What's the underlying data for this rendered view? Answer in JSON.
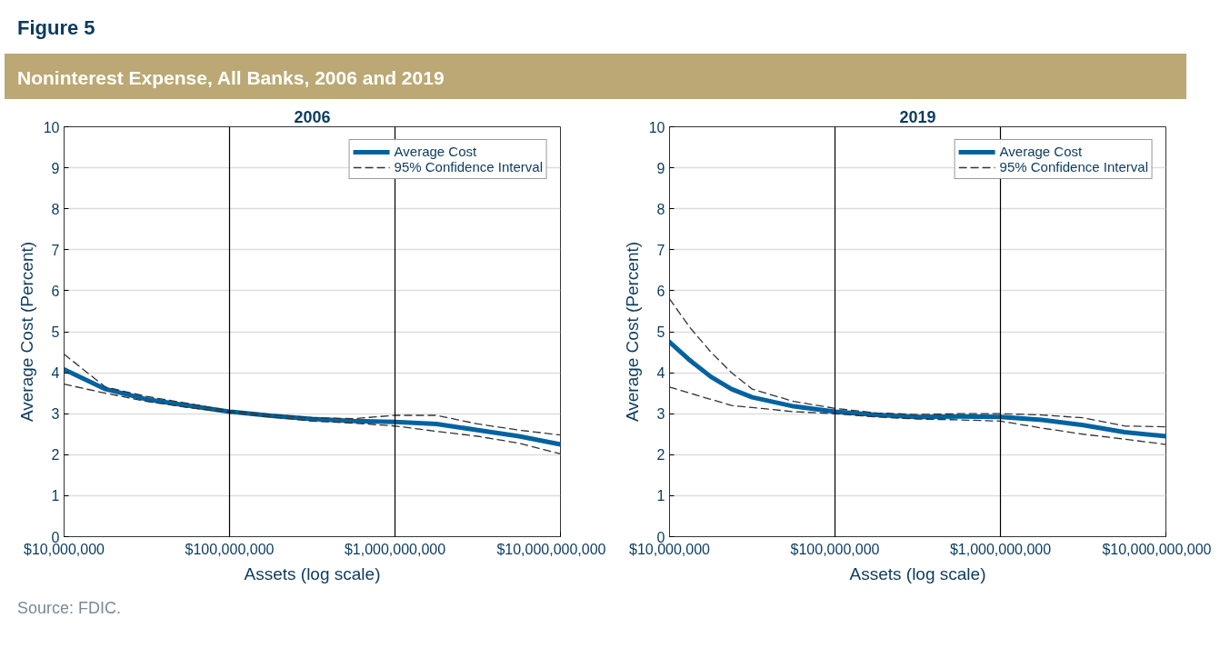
{
  "chart_data": [
    {
      "type": "line",
      "title": "2006",
      "xlabel": "Assets (log scale)",
      "ylabel": "Average Cost (Percent)",
      "log": "x",
      "grid": "y",
      "legend": "top right",
      "annotations": [
        "Figure 5",
        "Noninterest Expense, All Banks, 2006 and 2019"
      ],
      "x": [
        10000000,
        17800000,
        31600000,
        56200000,
        100000000,
        178000000,
        316000000,
        562000000,
        1000000000,
        1780000000,
        3160000000,
        5620000000,
        10000000000
      ],
      "xlim": [
        10000000,
        10000000000
      ],
      "xticks": [
        {
          "value": 10000000,
          "label": "$10,000,000"
        },
        {
          "value": 100000000,
          "label": "$100,000,000"
        },
        {
          "value": 1000000000,
          "label": "$1,000,000,000"
        },
        {
          "value": 10000000000,
          "label": "$10,000,000,000"
        }
      ],
      "ylim": [
        0,
        10
      ],
      "yticks": [
        0,
        1,
        2,
        3,
        4,
        5,
        6,
        7,
        8,
        9,
        10
      ],
      "ref_lines": [
        {
          "axis": "x",
          "value": 100000000,
          "label": null,
          "color": "#000000"
        },
        {
          "axis": "x",
          "value": 1000000000,
          "label": null,
          "color": "#000000"
        }
      ],
      "series": [
        {
          "name": "Average Cost",
          "color": "#0063a0",
          "line_style": "solid",
          "values": [
            4.08,
            3.6,
            3.35,
            3.2,
            3.05,
            2.95,
            2.87,
            2.82,
            2.8,
            2.75,
            2.6,
            2.45,
            2.25
          ]
        },
        {
          "name": "95% Confidence Interval",
          "color": "#333333",
          "line_style": "dashed",
          "values": [
            4.45,
            3.65,
            3.42,
            3.25,
            3.07,
            2.98,
            2.9,
            2.88,
            2.96,
            2.96,
            2.75,
            2.6,
            2.48
          ]
        },
        {
          "color": "#333333",
          "line_style": "dashed",
          "values": [
            3.72,
            3.5,
            3.3,
            3.15,
            3.03,
            2.92,
            2.82,
            2.77,
            2.7,
            2.57,
            2.45,
            2.28,
            2.02
          ]
        }
      ]
    },
    {
      "type": "line",
      "title": "2019",
      "xlabel": "Assets (log scale)",
      "ylabel": "Average Cost (Percent)",
      "log": "x",
      "grid": "y",
      "legend": "top right",
      "annotations": [
        "Source: FDIC."
      ],
      "x": [
        10000000,
        13300000,
        17800000,
        23700000,
        31600000,
        56200000,
        100000000,
        178000000,
        316000000,
        562000000,
        1000000000,
        1780000000,
        3160000000,
        5620000000,
        10000000000
      ],
      "xlim": [
        10000000,
        10000000000
      ],
      "xticks": [
        {
          "value": 10000000,
          "label": "$10,000,000"
        },
        {
          "value": 100000000,
          "label": "$100,000,000"
        },
        {
          "value": 1000000000,
          "label": "$1,000,000,000"
        },
        {
          "value": 10000000000,
          "label": "$10,000,000,000"
        }
      ],
      "ylim": [
        0,
        10
      ],
      "yticks": [
        0,
        1,
        2,
        3,
        4,
        5,
        6,
        7,
        8,
        9,
        10
      ],
      "ref_lines": [
        {
          "axis": "x",
          "value": 100000000,
          "label": null,
          "color": "#000000"
        },
        {
          "axis": "x",
          "value": 1000000000,
          "label": null,
          "color": "#000000"
        }
      ],
      "series": [
        {
          "name": "Average Cost",
          "color": "#0063a0",
          "line_style": "solid",
          "values": [
            4.75,
            4.3,
            3.9,
            3.6,
            3.4,
            3.18,
            3.05,
            2.97,
            2.92,
            2.93,
            2.92,
            2.85,
            2.72,
            2.55,
            2.45
          ]
        },
        {
          "name": "95% Confidence Interval",
          "color": "#333333",
          "line_style": "dashed",
          "values": [
            5.8,
            5.1,
            4.5,
            4.0,
            3.6,
            3.3,
            3.13,
            3.02,
            2.98,
            3.0,
            3.0,
            2.97,
            2.9,
            2.7,
            2.68
          ]
        },
        {
          "color": "#333333",
          "line_style": "dashed",
          "values": [
            3.65,
            3.5,
            3.35,
            3.2,
            3.15,
            3.05,
            3.0,
            2.92,
            2.87,
            2.85,
            2.82,
            2.65,
            2.5,
            2.38,
            2.25
          ]
        }
      ]
    }
  ]
}
